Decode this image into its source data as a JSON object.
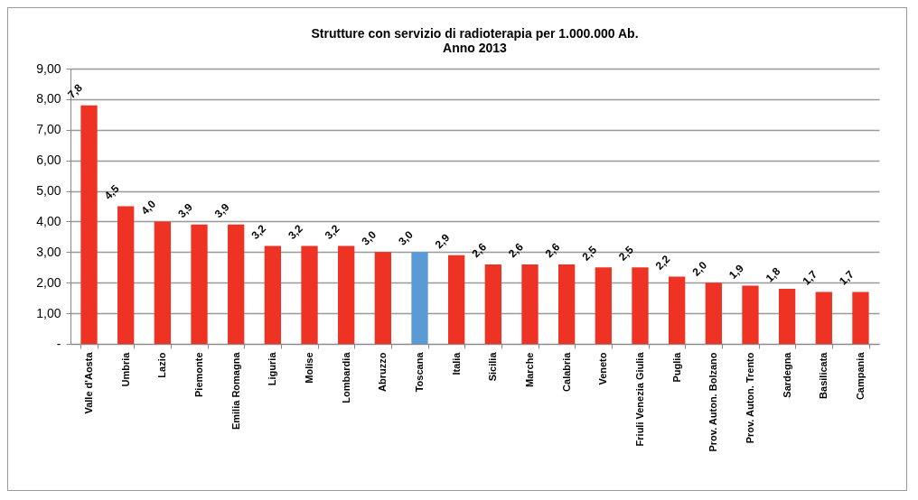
{
  "chart_data": {
    "type": "bar",
    "title": "Strutture con servizio di radioterapia per 1.000.000 Ab.",
    "subtitle": "Anno 2013",
    "categories": [
      "Valle d'Aosta",
      "Umbria",
      "Lazio",
      "Piemonte",
      "Emilia Romagna",
      "Liguria",
      "Molise",
      "Lombardia",
      "Abruzzo",
      "Toscana",
      "Italia",
      "Sicilia",
      "Marche",
      "Calabria",
      "Veneto",
      "Friuli Venezia Giulia",
      "Puglia",
      "Prov. Auton. Bolzano",
      "Prov. Auton. Trento",
      "Sardegna",
      "Basilicata",
      "Campania"
    ],
    "values": [
      7.8,
      4.5,
      4.0,
      3.9,
      3.9,
      3.2,
      3.2,
      3.2,
      3.0,
      3.0,
      2.9,
      2.6,
      2.6,
      2.6,
      2.5,
      2.5,
      2.2,
      2.0,
      1.9,
      1.8,
      1.7,
      1.7
    ],
    "value_labels": [
      "7,8",
      "4,5",
      "4,0",
      "3,9",
      "3,9",
      "3,2",
      "3,2",
      "3,2",
      "3,0",
      "3,0",
      "2,9",
      "2,6",
      "2,6",
      "2,6",
      "2,5",
      "2,5",
      "2,2",
      "2,0",
      "1,9",
      "1,8",
      "1,7",
      "1,7"
    ],
    "colors": [
      "#ee3224",
      "#ee3224",
      "#ee3224",
      "#ee3224",
      "#ee3224",
      "#ee3224",
      "#ee3224",
      "#ee3224",
      "#ee3224",
      "#5b9bd5",
      "#ee3224",
      "#ee3224",
      "#ee3224",
      "#ee3224",
      "#ee3224",
      "#ee3224",
      "#ee3224",
      "#ee3224",
      "#ee3224",
      "#ee3224",
      "#ee3224",
      "#ee3224"
    ],
    "ylim": [
      0,
      9
    ],
    "yticks": [
      {
        "value": 0,
        "label": "-"
      },
      {
        "value": 1,
        "label": "1,00"
      },
      {
        "value": 2,
        "label": "2,00"
      },
      {
        "value": 3,
        "label": "3,00"
      },
      {
        "value": 4,
        "label": "4,00"
      },
      {
        "value": 5,
        "label": "5,00"
      },
      {
        "value": 6,
        "label": "6,00"
      },
      {
        "value": 7,
        "label": "7,00"
      },
      {
        "value": 8,
        "label": "8,00"
      },
      {
        "value": 9,
        "label": "9,00"
      }
    ],
    "grid": "y"
  }
}
